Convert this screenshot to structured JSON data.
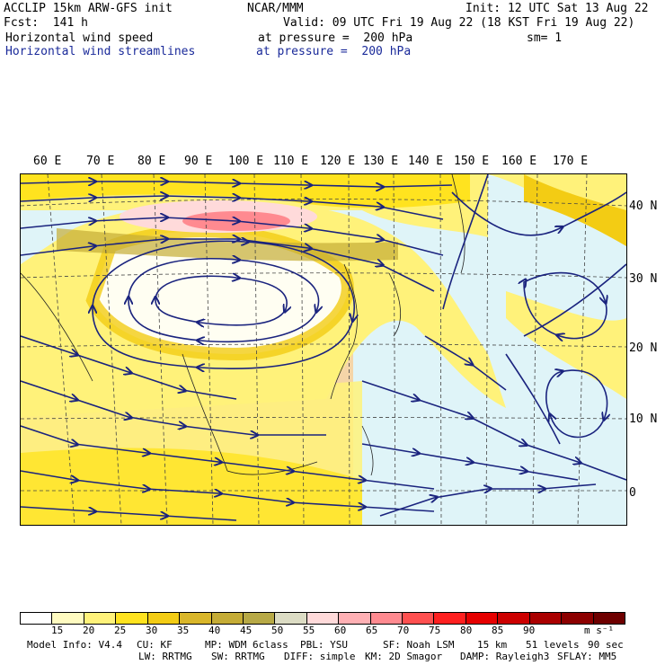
{
  "header": {
    "model_title": "ACCLIP 15km ARW-GFS init",
    "forecast": "Fcst:  141 h",
    "center": "NCAR/MMM",
    "init": "Init: 12 UTC Sat 13 Aug 22",
    "valid": "Valid: 09 UTC Fri 19 Aug 22 (18 KST Fri 19 Aug 22)",
    "field1_name": "Horizontal wind speed",
    "field1_level": "at pressure =  200 hPa",
    "smoothing": "sm= 1",
    "field2_name": "Horizontal wind streamlines",
    "field2_level": "at pressure =  200 hPa"
  },
  "longitude_labels": [
    "60 E",
    "70 E",
    "80 E",
    "90 E",
    "100 E",
    "110 E",
    "120 E",
    "130 E",
    "140 E",
    "150 E",
    "160 E",
    "170 E"
  ],
  "latitude_labels": [
    "40 N",
    "30 N",
    "20 N",
    "10 N",
    "0"
  ],
  "legend": {
    "labels": [
      "15",
      "20",
      "25",
      "30",
      "35",
      "40",
      "45",
      "50",
      "55",
      "60",
      "65",
      "70",
      "75",
      "80",
      "85",
      "90"
    ],
    "unit": "m s⁻¹",
    "colors": [
      "#ffffff",
      "#fffbc0",
      "#fff27a",
      "#ffe31f",
      "#f3cc14",
      "#d9b62a",
      "#c5ac36",
      "#b7a946",
      "#dcdcc4",
      "#ffdada",
      "#ffb0b4",
      "#ff8a90",
      "#ff5050",
      "#ff2020",
      "#e60000",
      "#cc0000",
      "#aa0000",
      "#8c0000",
      "#6e0000"
    ]
  },
  "footer": {
    "model_info": "Model Info: V4.4",
    "cu": "CU: KF",
    "mp": "MP: WDM 6class",
    "pbl": "PBL: YSU",
    "sf": "SF: Noah LSM",
    "res": "15 km",
    "levels": "51 levels",
    "dt": "90 sec",
    "lw": "LW: RRTMG",
    "sw": "SW: RRTMG",
    "diff": "DIFF: simple",
    "km": "KM: 2D Smagor",
    "damp": "DAMP: Rayleigh3",
    "sflay": "SFLAY: MM5"
  },
  "colors": {
    "streamline": "#1a237e",
    "ocean_calm": "#dff4f8",
    "land": "#f5d5a8"
  }
}
